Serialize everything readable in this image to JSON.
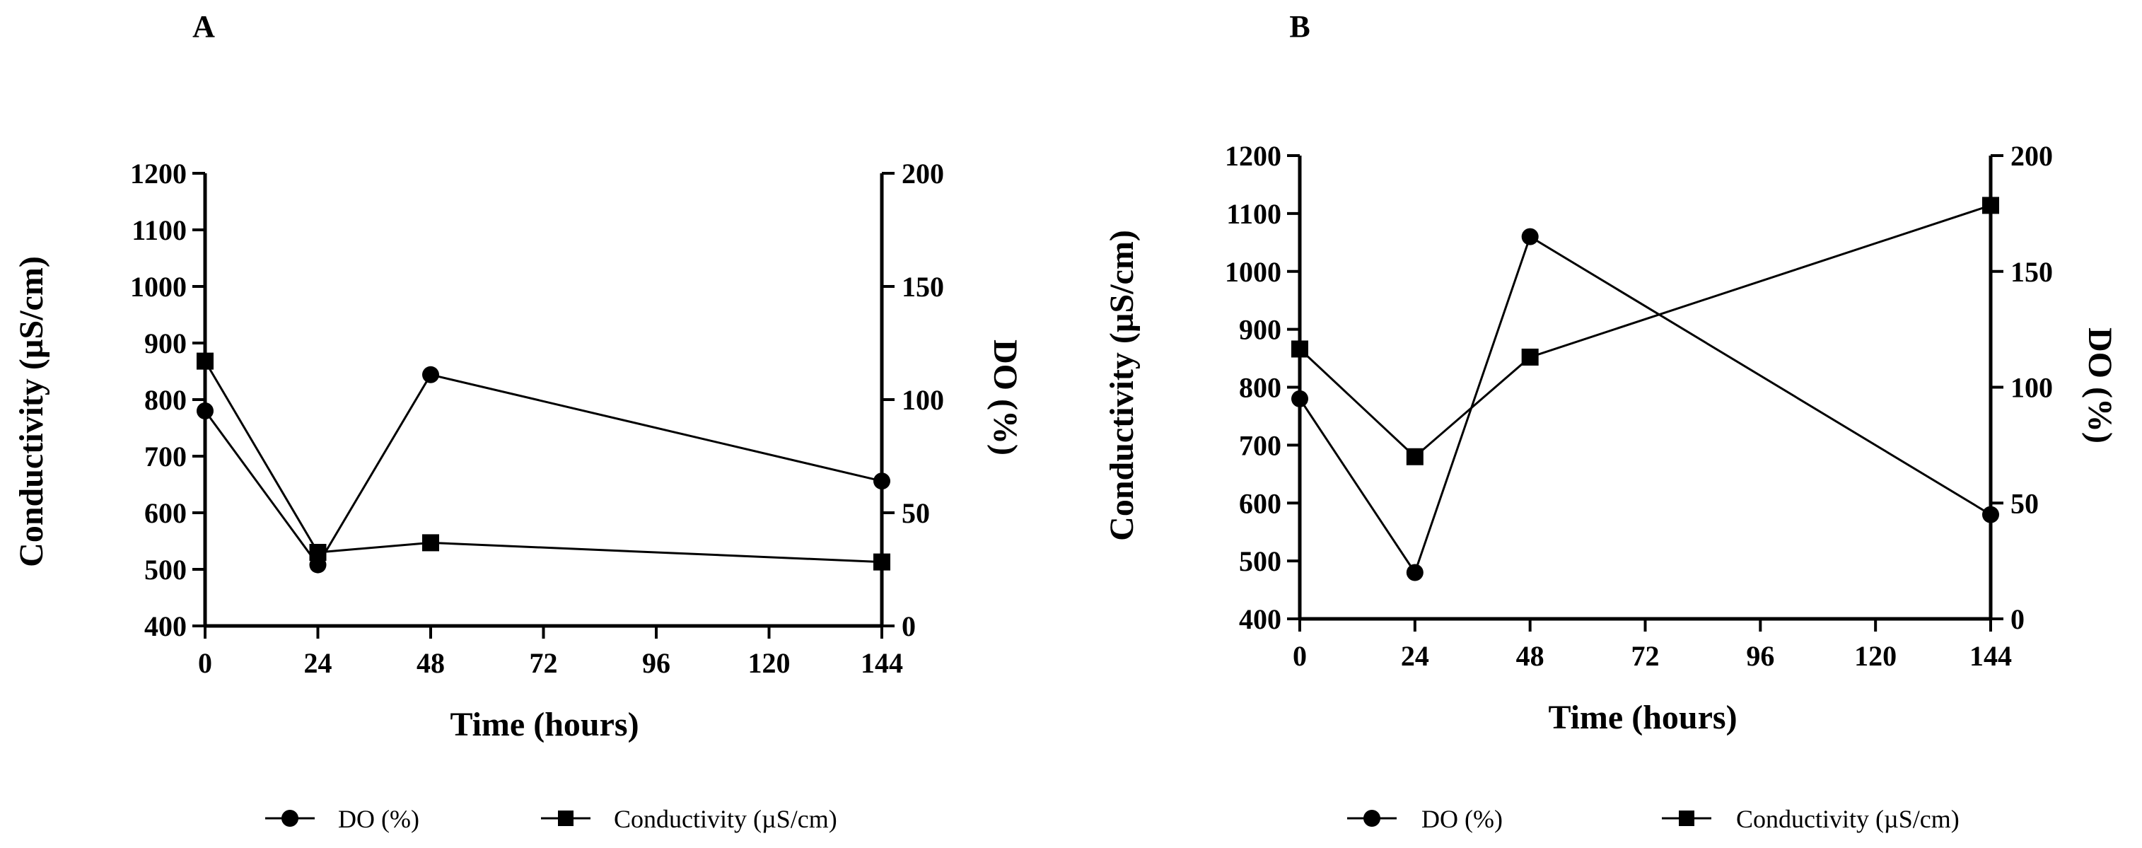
{
  "chart_data": [
    {
      "panel": "A",
      "type": "line",
      "xlabel": "Time (hours)",
      "ylabel_left": "Conductivity (µS/cm)",
      "ylabel_right": "DO (%)",
      "x_ticks": [
        "0",
        "24",
        "48",
        "72",
        "96",
        "120",
        "144"
      ],
      "xlim": [
        0,
        144
      ],
      "ylim_left": [
        400,
        1200
      ],
      "y_ticks_left": [
        "400",
        "500",
        "600",
        "700",
        "800",
        "900",
        "1000",
        "1100",
        "1200"
      ],
      "ylim_right": [
        0,
        200
      ],
      "y_ticks_right": [
        "0",
        "50",
        "100",
        "150",
        "200"
      ],
      "series": [
        {
          "name": "DO (%)",
          "axis": "right",
          "marker": "circle",
          "x": [
            0,
            24,
            48,
            144
          ],
          "values": [
            95,
            27,
            111,
            64
          ]
        },
        {
          "name": "Conductivity (µS/cm)",
          "axis": "left",
          "marker": "square",
          "x": [
            0,
            24,
            48,
            144
          ],
          "values": [
            868,
            530,
            547,
            513
          ]
        }
      ],
      "legend": [
        {
          "label": "DO (%)",
          "marker": "circle"
        },
        {
          "label": "Conductivity (µS/cm)",
          "marker": "square"
        }
      ]
    },
    {
      "panel": "B",
      "type": "line",
      "xlabel": "Time (hours)",
      "ylabel_left": "Conductivity (µS/cm)",
      "ylabel_right": "DO (%)",
      "x_ticks": [
        "0",
        "24",
        "48",
        "72",
        "96",
        "120",
        "144"
      ],
      "xlim": [
        0,
        144
      ],
      "ylim_left": [
        400,
        1200
      ],
      "y_ticks_left": [
        "400",
        "500",
        "600",
        "700",
        "800",
        "900",
        "1000",
        "1100",
        "1200"
      ],
      "ylim_right": [
        0,
        200
      ],
      "y_ticks_right": [
        "0",
        "50",
        "100",
        "150",
        "200"
      ],
      "series": [
        {
          "name": "DO (%)",
          "axis": "right",
          "marker": "circle",
          "x": [
            0,
            24,
            48,
            144
          ],
          "values": [
            95,
            20,
            165,
            45
          ]
        },
        {
          "name": "Conductivity (µS/cm)",
          "axis": "left",
          "marker": "square",
          "x": [
            0,
            24,
            48,
            144
          ],
          "values": [
            866,
            680,
            852,
            1114
          ]
        }
      ],
      "legend": [
        {
          "label": "DO (%)",
          "marker": "circle"
        },
        {
          "label": "Conductivity (µS/cm)",
          "marker": "square"
        }
      ]
    }
  ]
}
